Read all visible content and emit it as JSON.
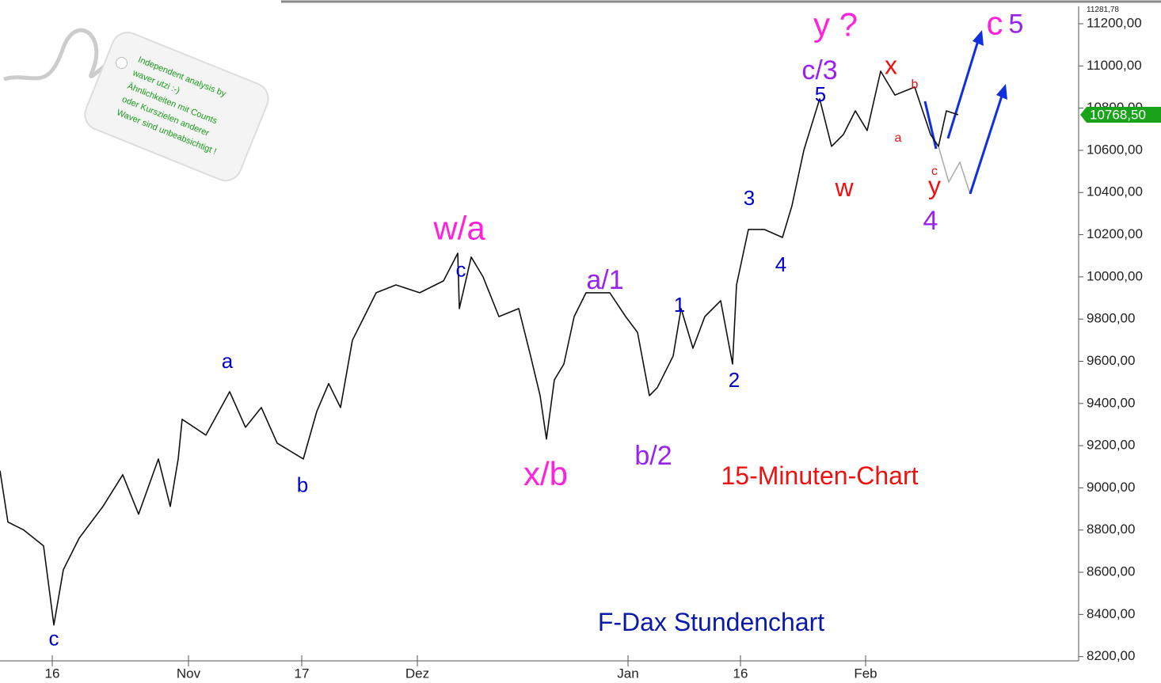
{
  "chart_data": {
    "type": "line",
    "x": [
      0,
      1,
      3,
      5.5,
      6.8,
      8,
      10,
      13,
      15.5,
      17.5,
      20,
      21.5,
      22.5,
      23,
      26,
      29,
      31,
      33,
      35,
      38.3,
      40,
      41.5,
      43,
      44.5,
      46,
      47.5,
      50,
      53,
      56,
      57.8,
      58,
      59.5,
      61,
      63,
      65.5,
      67,
      68.2,
      69,
      70,
      71.2,
      72.5,
      74,
      77,
      79,
      80.5,
      82,
      83,
      85,
      86,
      87.5,
      89,
      91,
      92.5,
      93,
      94.5,
      96.5,
      98.8,
      100,
      101.5,
      103.5,
      105,
      106.5,
      108,
      109.5,
      111.2,
      113,
      115.5,
      117.5,
      118.5,
      119.5,
      121
    ],
    "values": [
      9081,
      8838,
      8800,
      8725,
      8350,
      8612,
      8762,
      8912,
      9062,
      8875,
      9137,
      8912,
      9137,
      9325,
      9250,
      9456,
      9287,
      9381,
      9212,
      9137,
      9362,
      9494,
      9381,
      9700,
      9812,
      9925,
      9962,
      9925,
      9981,
      10112,
      9850,
      10094,
      10000,
      9812,
      9850,
      9625,
      9437,
      9231,
      9512,
      9587,
      9812,
      9925,
      9925,
      9812,
      9737,
      9437,
      9475,
      9625,
      9850,
      9662,
      9812,
      9887,
      9587,
      9962,
      10225,
      10225,
      10187,
      10337,
      10600,
      10844,
      10619,
      10675,
      10787,
      10694,
      10975,
      10862,
      10900,
      10675,
      10619,
      10787,
      10768.5
    ],
    "color": "#111111",
    "xlim": [
      0,
      136
    ],
    "xticks": [
      {
        "value": 6.6,
        "label": "16"
      },
      {
        "value": 23.8,
        "label": "Nov"
      },
      {
        "value": 38.1,
        "label": "17"
      },
      {
        "value": 52.7,
        "label": "Dez"
      },
      {
        "value": 79.3,
        "label": "Jan"
      },
      {
        "value": 93.5,
        "label": "16"
      },
      {
        "value": 109.3,
        "label": "Feb"
      }
    ],
    "ylim": [
      8180,
      11281.78
    ],
    "yticks": [
      {
        "value": 8200,
        "label": "8200,00"
      },
      {
        "value": 8400,
        "label": "8400,00"
      },
      {
        "value": 8600,
        "label": "8600,00"
      },
      {
        "value": 8800,
        "label": "8800,00"
      },
      {
        "value": 9000,
        "label": "9000,00"
      },
      {
        "value": 9200,
        "label": "9200,00"
      },
      {
        "value": 9400,
        "label": "9400,00"
      },
      {
        "value": 9600,
        "label": "9600,00"
      },
      {
        "value": 9800,
        "label": "9800,00"
      },
      {
        "value": 10000,
        "label": "10000,00"
      },
      {
        "value": 10200,
        "label": "10200,00"
      },
      {
        "value": 10400,
        "label": "10400,00"
      },
      {
        "value": 10600,
        "label": "10600,00"
      },
      {
        "value": 10800,
        "label": "10800,00"
      },
      {
        "value": 11000,
        "label": "11000,00"
      },
      {
        "value": 11200,
        "label": "11200,00"
      }
    ],
    "axis_max": {
      "value": 11281.78,
      "label": "11281,78"
    },
    "last": {
      "value": 10768.5,
      "label": "10768,50"
    },
    "grid": false,
    "annotations": [
      {
        "text": "w/a",
        "x": 58,
        "y": 10219,
        "color": "#ff22dd"
      },
      {
        "text": "c",
        "x": 58.2,
        "y": 10028,
        "color": "#0000cc"
      },
      {
        "text": "a",
        "x": 28.7,
        "y": 9594,
        "color": "#0000cc"
      },
      {
        "text": "b",
        "x": 38.2,
        "y": 9006,
        "color": "#0000cc"
      },
      {
        "text": "c",
        "x": 6.8,
        "y": 8279,
        "color": "#0000cc"
      },
      {
        "text": "x/b",
        "x": 68.9,
        "y": 9054,
        "color": "#ff22dd"
      },
      {
        "text": "a/1",
        "x": 76.4,
        "y": 9977,
        "color": "#9922ee"
      },
      {
        "text": "b/2",
        "x": 82.5,
        "y": 9144,
        "color": "#9922ee"
      },
      {
        "text": "1",
        "x": 85.8,
        "y": 9861,
        "color": "#0000cc"
      },
      {
        "text": "2",
        "x": 92.7,
        "y": 9504,
        "color": "#0000cc"
      },
      {
        "text": "3",
        "x": 94.6,
        "y": 10367,
        "color": "#0000cc"
      },
      {
        "text": "4",
        "x": 98.6,
        "y": 10052,
        "color": "#0000cc"
      },
      {
        "text": "5",
        "x": 103.6,
        "y": 10858,
        "color": "#0000cc"
      },
      {
        "text": "c/3",
        "x": 103.5,
        "y": 10971,
        "color": "#9922ee"
      },
      {
        "text": "y ?",
        "x": 105.5,
        "y": 11183,
        "color": "#ff22dd"
      },
      {
        "text": "x",
        "x": 112.5,
        "y": 10993,
        "color": "#ee1111"
      },
      {
        "text": "b",
        "x": 115.5,
        "y": 10911,
        "color": "#ee1111"
      },
      {
        "text": "a",
        "x": 113.4,
        "y": 10656,
        "color": "#ee1111"
      },
      {
        "text": "w",
        "x": 106.6,
        "y": 10413,
        "color": "#ee1111"
      },
      {
        "text": "c",
        "x": 118,
        "y": 10499,
        "color": "#ee1111"
      },
      {
        "text": "y",
        "x": 118,
        "y": 10424,
        "color": "#ee1111"
      },
      {
        "text": "4",
        "x": 117.5,
        "y": 10259,
        "color": "#9922ee"
      },
      {
        "text": "c",
        "x": 125.6,
        "y": 11191,
        "color": "#ff22dd"
      },
      {
        "text": "5",
        "x": 128.3,
        "y": 11191,
        "color": "#9922ee"
      },
      {
        "text": "15-Minuten-Chart",
        "x": 103.5,
        "y": 9049,
        "color": "#ee1111"
      },
      {
        "text": "F-Dax Stundenchart",
        "x": 89.8,
        "y": 8355,
        "color": "#0a1aa8"
      }
    ]
  },
  "tag": {
    "lines": [
      "Independent analysis by",
      "waver utzi :-)",
      "Ähnlichkeiten mit Counts",
      "oder Kurszielen anderer",
      "Waver sind unbeabsichtigt !"
    ]
  }
}
